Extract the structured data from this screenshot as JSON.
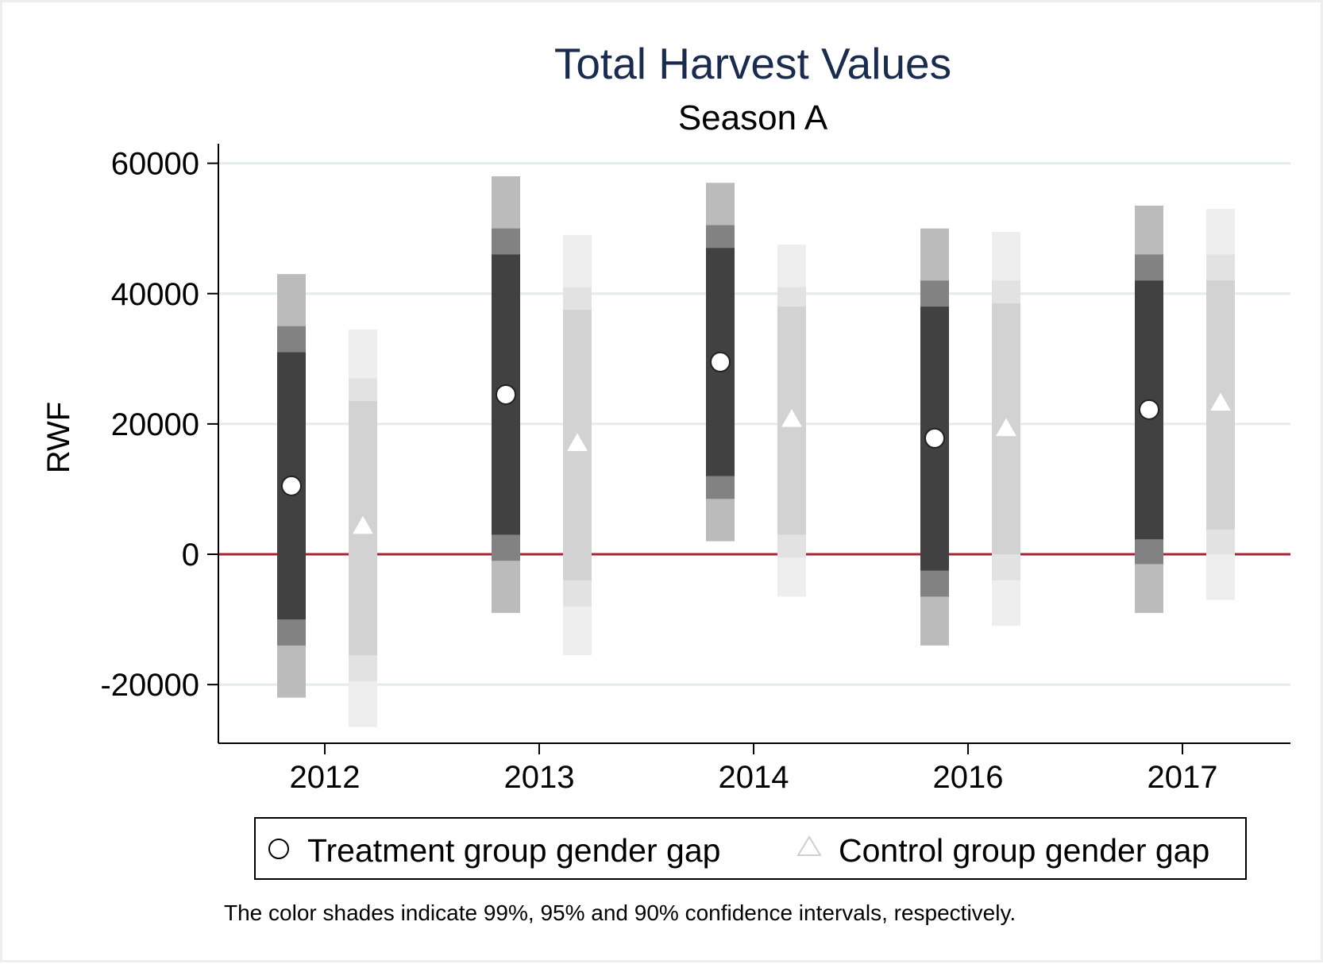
{
  "chart_data": {
    "type": "interval",
    "title": "Total Harvest Values",
    "subtitle": "Season A",
    "xlabel": "",
    "ylabel": "RWF",
    "categories": [
      "2012",
      "2013",
      "2014",
      "2016",
      "2017"
    ],
    "y_ticks": [
      "60000",
      "40000",
      "20000",
      "0",
      "-20000"
    ],
    "y_tick_values": [
      60000,
      40000,
      20000,
      0,
      -20000
    ],
    "ylim": [
      -29000,
      63000
    ],
    "reference_line": 0,
    "grid": true,
    "series": [
      {
        "name": "Treatment group gender gap",
        "marker": "circle",
        "estimates": [
          10500,
          24500,
          29500,
          17800,
          22200
        ],
        "ci90": [
          [
            -10000,
            31000
          ],
          [
            3000,
            46000
          ],
          [
            12000,
            47000
          ],
          [
            -2500,
            38000
          ],
          [
            2300,
            42000
          ]
        ],
        "ci95": [
          [
            -14000,
            35000
          ],
          [
            -1000,
            50000
          ],
          [
            8500,
            50500
          ],
          [
            -6500,
            42000
          ],
          [
            -1500,
            46000
          ]
        ],
        "ci99": [
          [
            -22000,
            43000
          ],
          [
            -9000,
            58000
          ],
          [
            2000,
            57000
          ],
          [
            -14000,
            50000
          ],
          [
            -9000,
            53500
          ]
        ]
      },
      {
        "name": "Control group gender gap",
        "marker": "triangle",
        "estimates": [
          4300,
          17000,
          20700,
          19300,
          23200
        ],
        "ci90": [
          [
            -15500,
            23500
          ],
          [
            -4000,
            37500
          ],
          [
            3000,
            38000
          ],
          [
            0,
            38500
          ],
          [
            3800,
            42000
          ]
        ],
        "ci95": [
          [
            -19500,
            27000
          ],
          [
            -8000,
            41000
          ],
          [
            -500,
            41000
          ],
          [
            -4000,
            42000
          ],
          [
            0,
            46000
          ]
        ],
        "ci99": [
          [
            -26500,
            34500
          ],
          [
            -15500,
            49000
          ],
          [
            -6500,
            47500
          ],
          [
            -11000,
            49500
          ],
          [
            -7000,
            53000
          ]
        ]
      }
    ],
    "legend_position": "bottom",
    "note": "The color shades indicate 99%, 95% and 90% confidence intervals, respectively.",
    "colors": {
      "treatment_ci90": "#414141",
      "treatment_ci95": "#828282",
      "treatment_ci99": "#bbbbbb",
      "control_ci90": "#d2d2d2",
      "control_ci95": "#e2e2e2",
      "control_ci99": "#eeeeee",
      "zero_line": "#a32638",
      "grid": "#e3ebeb",
      "title": "#1b2b4d"
    }
  }
}
